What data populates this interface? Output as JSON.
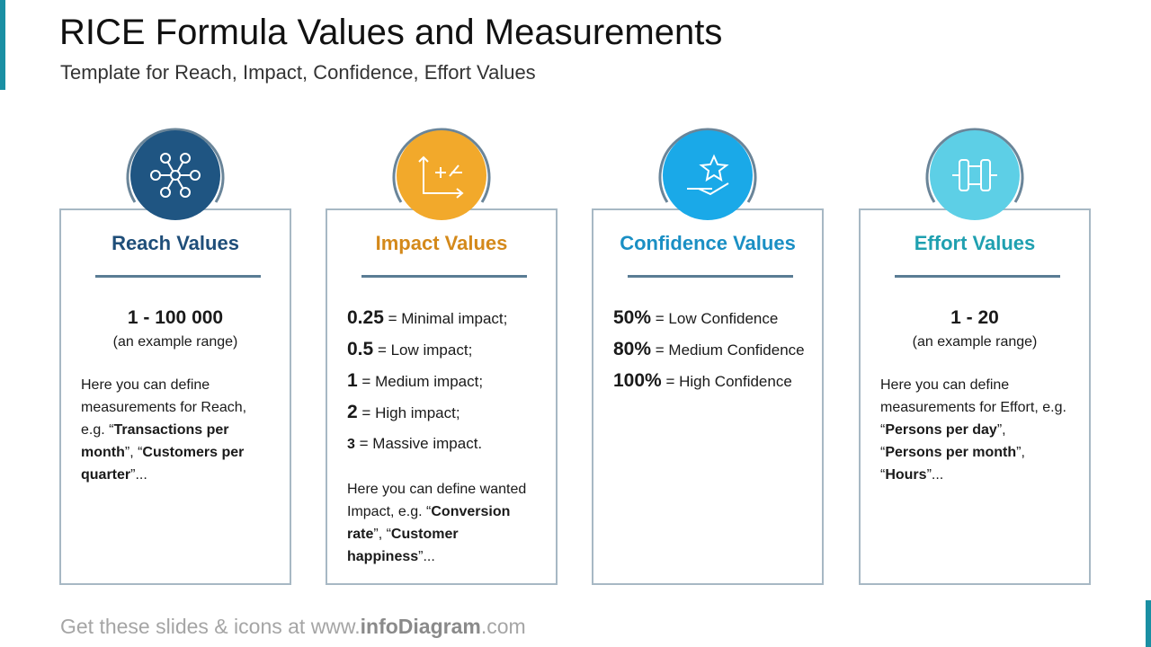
{
  "header": {
    "title": "RICE Formula Values and Measurements",
    "subtitle": "Template for Reach, Impact, Confidence, Effort Values"
  },
  "cards": [
    {
      "title": "Reach Values",
      "color": "#1f5582",
      "title_color": "#1f4e79",
      "range": "1 - 100 000",
      "range_note": "(an example range)",
      "description": [
        {
          "text": "Here you can define measurements for Reach, e.g. “",
          "bold": false
        },
        {
          "text": "Transactions per month",
          "bold": true
        },
        {
          "text": "”, “",
          "bold": false
        },
        {
          "text": "Customers per quarter",
          "bold": true
        },
        {
          "text": "”...",
          "bold": false
        }
      ]
    },
    {
      "title": "Impact Values",
      "color": "#f2a92b",
      "title_color": "#d4891a",
      "items": [
        {
          "value": "0.25",
          "text": "= Minimal impact;"
        },
        {
          "value": "0.5",
          "text": "= Low impact;"
        },
        {
          "value": "1",
          "text": "= Medium impact;"
        },
        {
          "value": "2",
          "text": "= High impact;"
        },
        {
          "value": "3",
          "text": "= Massive impact."
        }
      ],
      "description": [
        {
          "text": "Here you can define wanted Impact, e.g. “",
          "bold": false
        },
        {
          "text": "Conversion rate",
          "bold": true
        },
        {
          "text": "”, “",
          "bold": false
        },
        {
          "text": "Customer happiness",
          "bold": true
        },
        {
          "text": "”...",
          "bold": false
        }
      ]
    },
    {
      "title": "Confidence Values",
      "color": "#1aa9e8",
      "title_color": "#1a8fc4",
      "items": [
        {
          "value": "50%",
          "text": "= Low Confidence"
        },
        {
          "value": "80%",
          "text": "= Medium Confidence"
        },
        {
          "value": "100%",
          "text": "= High Confidence"
        }
      ]
    },
    {
      "title": "Effort Values",
      "color": "#5dcfe6",
      "title_color": "#1fa0b0",
      "range": "1 - 20",
      "range_note": "(an example range)",
      "description": [
        {
          "text": "Here you can define measurements for Effort, e.g. “",
          "bold": false
        },
        {
          "text": "Persons per day",
          "bold": true
        },
        {
          "text": "”, “",
          "bold": false
        },
        {
          "text": "Persons per month",
          "bold": true
        },
        {
          "text": "”, “",
          "bold": false
        },
        {
          "text": "Hours",
          "bold": true
        },
        {
          "text": "”...",
          "bold": false
        }
      ]
    }
  ],
  "footer": [
    {
      "text": "Get these slides & icons at www.",
      "bold": false
    },
    {
      "text": "infoDiagram",
      "bold": true
    },
    {
      "text": ".com",
      "bold": false
    }
  ]
}
